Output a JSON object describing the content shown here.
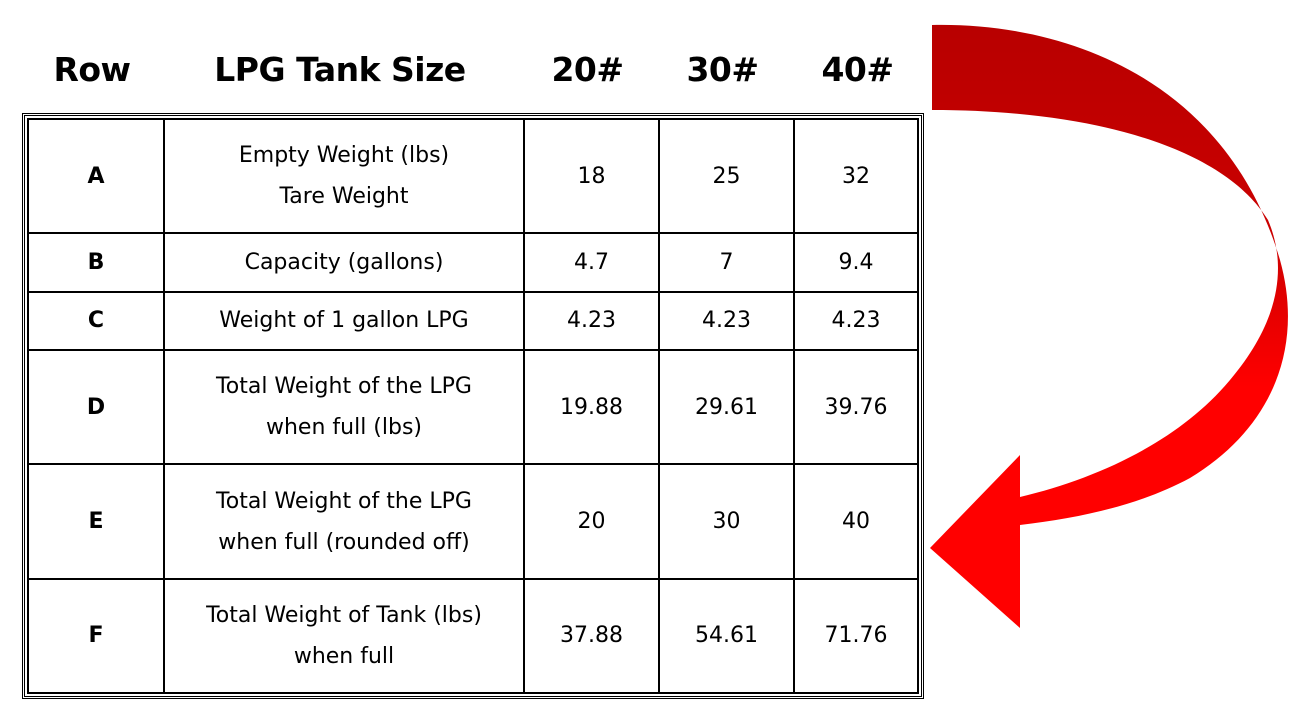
{
  "columns": [
    "Row",
    "LPG Tank Size",
    "20#",
    "30#",
    "40#"
  ],
  "rows": [
    {
      "id": "A",
      "desc": [
        "Empty Weight (lbs)",
        "Tare Weight"
      ],
      "v20": "18",
      "v30": "25",
      "v40": "32"
    },
    {
      "id": "B",
      "desc": [
        "Capacity (gallons)",
        ""
      ],
      "v20": "4.7",
      "v30": "7",
      "v40": "9.4"
    },
    {
      "id": "C",
      "desc": [
        "Weight of 1 gallon LPG",
        ""
      ],
      "v20": "4.23",
      "v30": "4.23",
      "v40": "4.23"
    },
    {
      "id": "D",
      "desc": [
        "Total Weight of the LPG",
        "when full (lbs)"
      ],
      "v20": "19.88",
      "v30": "29.61",
      "v40": "39.76"
    },
    {
      "id": "E",
      "desc": [
        "Total Weight of the LPG",
        "when full (rounded off)"
      ],
      "v20": "20",
      "v30": "30",
      "v40": "40"
    },
    {
      "id": "F",
      "desc": [
        "Total Weight of Tank (lbs)",
        "when full"
      ],
      "v20": "37.88",
      "v30": "54.61",
      "v40": "71.76"
    }
  ],
  "colors": {
    "arrow_dark": "#b80000",
    "arrow_bright": "#ff0000",
    "border": "#000000"
  },
  "icons": {
    "arrow": "curved-arrow-icon"
  }
}
